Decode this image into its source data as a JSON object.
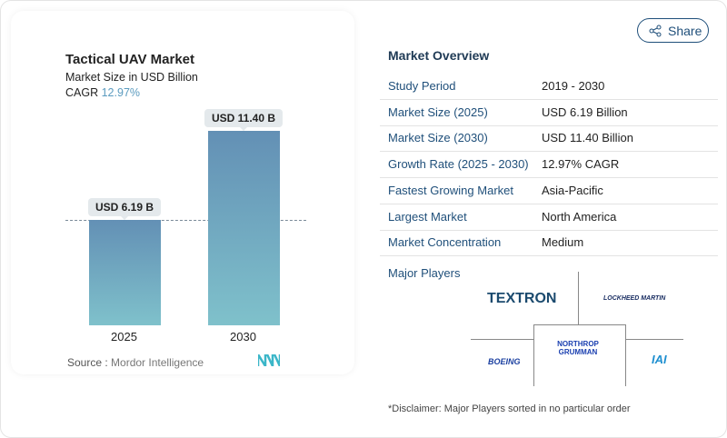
{
  "chart_data": {
    "type": "bar",
    "title": "Tactical UAV Market",
    "subtitle": "Market Size in USD Billion",
    "cagr_label": "CAGR",
    "cagr_value": "12.97%",
    "categories": [
      "2025",
      "2030"
    ],
    "values": [
      6.19,
      11.4
    ],
    "data_labels": [
      "USD 6.19 B",
      "USD 11.40 B"
    ],
    "ylim": [
      0,
      11.4
    ],
    "grid": false,
    "reference_line": "dashed at 2025 value",
    "colors": {
      "bar_top": "#6390b5",
      "bar_bottom": "#7fc1cb",
      "cagr": "#5b9bbf"
    }
  },
  "source": {
    "label": "Source :",
    "value": "Mordor Intelligence"
  },
  "share_label": "Share",
  "overview": {
    "title": "Market Overview",
    "rows": [
      {
        "k": "Study Period",
        "v": "2019 - 2030"
      },
      {
        "k": "Market Size (2025)",
        "v": "USD 6.19 Billion"
      },
      {
        "k": "Market Size (2030)",
        "v": "USD 11.40 Billion"
      },
      {
        "k": "Growth Rate (2025 - 2030)",
        "v": "12.97% CAGR"
      },
      {
        "k": "Fastest Growing Market",
        "v": "Asia-Pacific"
      },
      {
        "k": "Largest Market",
        "v": "North America"
      },
      {
        "k": "Market Concentration",
        "v": "Medium"
      }
    ]
  },
  "players": {
    "title": "Major Players",
    "logos": [
      "TEXTRON",
      "LOCKHEED MARTIN",
      "NORTHROP GRUMMAN",
      "BOEING",
      "IAI"
    ]
  },
  "disclaimer": "*Disclaimer: Major Players sorted in no particular order"
}
